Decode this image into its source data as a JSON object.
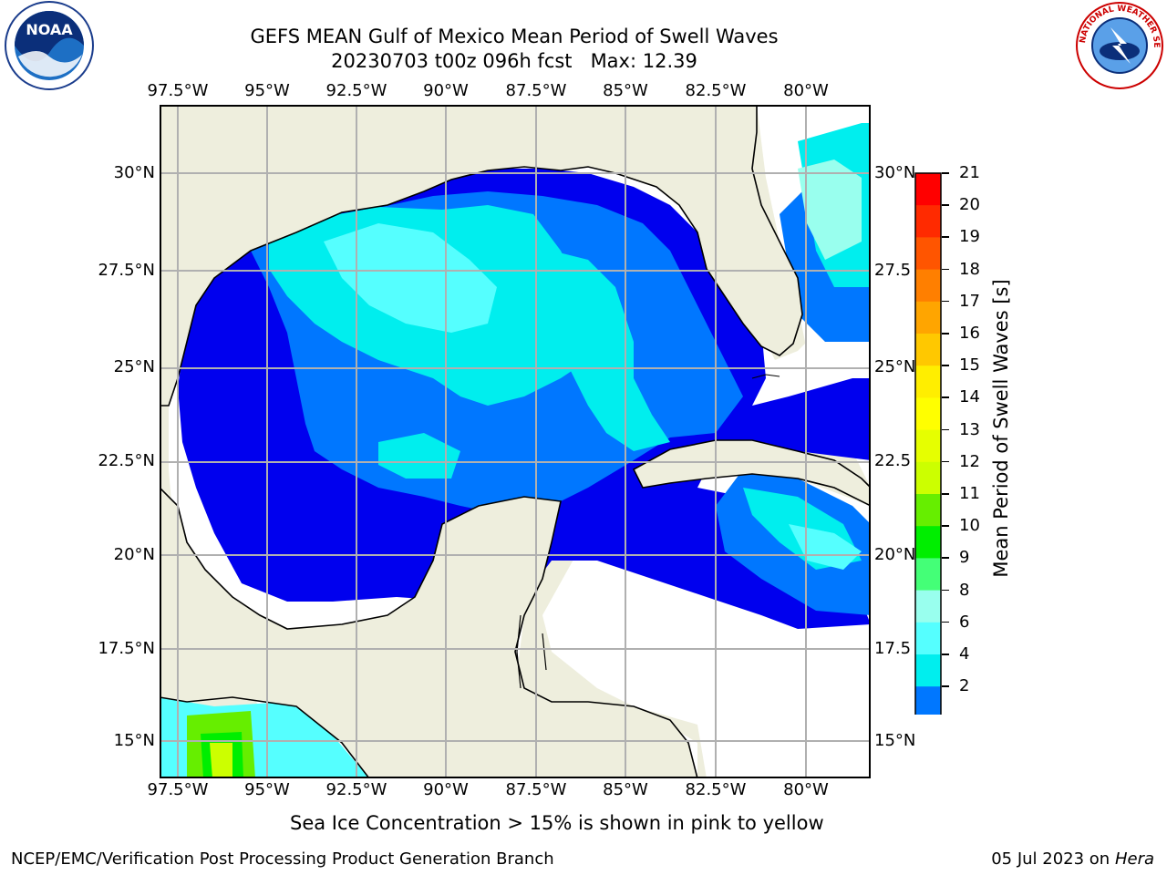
{
  "header": {
    "title_line1": "GEFS MEAN Gulf of Mexico Mean Period of Swell Waves",
    "title_line2": "20230703 t00z 096h fcst   Max: 12.39"
  },
  "logos": {
    "left": "noaa-logo",
    "right": "nws-logo",
    "noaa_text": "NOAA",
    "nws_text": "NATIONAL WEATHER SERVICE"
  },
  "map": {
    "lon_ticks": [
      "97.5°W",
      "95°W",
      "92.5°W",
      "90°W",
      "87.5°W",
      "85°W",
      "82.5°W",
      "80°W"
    ],
    "lat_ticks_left": [
      "30°N",
      "27.5°N",
      "25°N",
      "22.5°N",
      "20°N",
      "17.5°N",
      "15°N"
    ],
    "lat_ticks_right": [
      "30°N",
      "27.5",
      "25°N",
      "22.5",
      "20°N",
      "17.5",
      "15°N"
    ],
    "colors": {
      "land": "#eeeedd",
      "ocean_missing": "#ffffff",
      "grid": "#b0b0b0"
    }
  },
  "colorbar": {
    "label": "Mean Period of Swell Waves [s]",
    "ticks": [
      "21",
      "20",
      "19",
      "18",
      "17",
      "16",
      "15",
      "14",
      "13",
      "12",
      "11",
      "10",
      "9",
      "8",
      "6",
      "4",
      "2"
    ],
    "colors": [
      "#ff0000",
      "#ff2a00",
      "#ff5500",
      "#ff7f00",
      "#ffa500",
      "#ffc800",
      "#ffee00",
      "#ffff00",
      "#e6ff00",
      "#ccff00",
      "#66ee00",
      "#00ee00",
      "#44ff77",
      "#99ffee",
      "#55ffff",
      "#00eeee",
      "#0077ff",
      "#0000ee"
    ]
  },
  "note": "Sea Ice Concentration > 15% is shown in pink to yellow",
  "footer": {
    "left": "NCEP/EMC/Verification Post Processing Product Generation Branch",
    "right_date": "05 Jul 2023 on ",
    "right_host": "Hera"
  }
}
